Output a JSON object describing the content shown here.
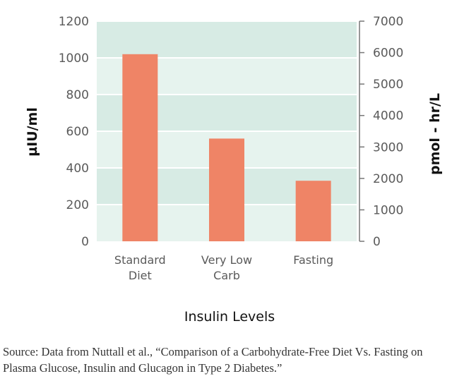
{
  "chart_data": {
    "type": "bar",
    "title": "Insulin Levels",
    "categories": [
      [
        "Standard",
        "Diet"
      ],
      [
        "Very Low",
        "Carb"
      ],
      [
        "Fasting"
      ]
    ],
    "values": [
      1020,
      560,
      330
    ],
    "ylabel": "µIU/ml",
    "ylim": [
      0,
      1200
    ],
    "yticks": [
      "0",
      "200",
      "400",
      "600",
      "800",
      "1000",
      "1200"
    ],
    "y2label": "pmol - hr/L",
    "y2lim": [
      0,
      7000
    ],
    "y2ticks": [
      "0",
      "1000",
      "2000",
      "3000",
      "4000",
      "5000",
      "6000",
      "7000"
    ],
    "grid": true,
    "colors": {
      "bar": "#ef8466",
      "band_dark": "#d7ebe4",
      "band_light": "#e6f3ee",
      "gridline": "#ffffff"
    }
  },
  "source": "Source: Data from Nuttall et al., “Comparison of a Carbohydrate-Free Diet Vs. Fasting on Plasma Glucose, Insulin and Glucagon in Type 2 Diabetes.”"
}
